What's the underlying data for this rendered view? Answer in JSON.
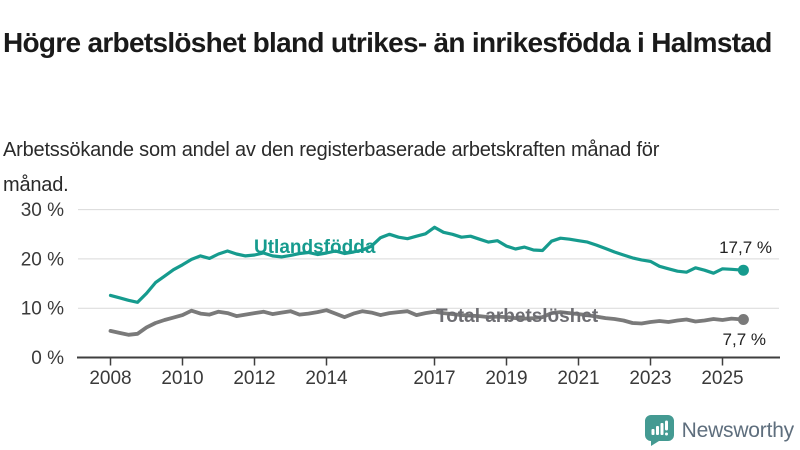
{
  "chart_data": {
    "type": "line",
    "title": "Högre arbetslöshet bland utrikes- än inrikesfödda i Halmstad",
    "subtitle": "Arbetssökande som andel av den registerbaserade arbetskraften månad för månad.",
    "unit": "%",
    "xlabel": "",
    "ylabel": "",
    "ylim": [
      0,
      32
    ],
    "xlim": [
      2007.1,
      2026.7
    ],
    "grid": "horizontal-only",
    "legend_position": "inline-labels-on-lines",
    "y_tick_values": [
      30,
      20,
      10,
      0
    ],
    "y_ticks": [
      "30 %",
      "20 %",
      "10 %",
      "0 %"
    ],
    "x_tick_years": [
      2008,
      2010,
      2012,
      2014,
      2017,
      2019,
      2021,
      2023,
      2025
    ],
    "series": [
      {
        "name": "Utlandsfödda",
        "color": "#169b8e",
        "label_color": "#169b8e",
        "end_label": "17,7 %",
        "end_value": 17.7,
        "points": [
          [
            2008.0,
            12.6
          ],
          [
            2008.25,
            12.1
          ],
          [
            2008.5,
            11.6
          ],
          [
            2008.75,
            11.2
          ],
          [
            2009.0,
            13.0
          ],
          [
            2009.25,
            15.2
          ],
          [
            2009.5,
            16.5
          ],
          [
            2009.75,
            17.8
          ],
          [
            2010.0,
            18.8
          ],
          [
            2010.25,
            19.9
          ],
          [
            2010.5,
            20.6
          ],
          [
            2010.75,
            20.1
          ],
          [
            2011.0,
            21.0
          ],
          [
            2011.25,
            21.6
          ],
          [
            2011.5,
            21.0
          ],
          [
            2011.75,
            20.6
          ],
          [
            2012.0,
            20.8
          ],
          [
            2012.25,
            21.2
          ],
          [
            2012.5,
            20.6
          ],
          [
            2012.75,
            20.4
          ],
          [
            2013.0,
            20.7
          ],
          [
            2013.25,
            21.1
          ],
          [
            2013.5,
            21.3
          ],
          [
            2013.75,
            20.9
          ],
          [
            2014.0,
            21.2
          ],
          [
            2014.25,
            21.6
          ],
          [
            2014.5,
            21.1
          ],
          [
            2014.75,
            21.4
          ],
          [
            2015.0,
            21.8
          ],
          [
            2015.25,
            22.6
          ],
          [
            2015.5,
            24.3
          ],
          [
            2015.75,
            25.0
          ],
          [
            2016.0,
            24.4
          ],
          [
            2016.25,
            24.1
          ],
          [
            2016.5,
            24.6
          ],
          [
            2016.75,
            25.1
          ],
          [
            2017.0,
            26.4
          ],
          [
            2017.25,
            25.4
          ],
          [
            2017.5,
            25.0
          ],
          [
            2017.75,
            24.4
          ],
          [
            2018.0,
            24.6
          ],
          [
            2018.25,
            24.0
          ],
          [
            2018.5,
            23.4
          ],
          [
            2018.75,
            23.7
          ],
          [
            2019.0,
            22.6
          ],
          [
            2019.25,
            22.0
          ],
          [
            2019.5,
            22.4
          ],
          [
            2019.75,
            21.8
          ],
          [
            2020.0,
            21.7
          ],
          [
            2020.25,
            23.6
          ],
          [
            2020.5,
            24.2
          ],
          [
            2020.75,
            24.0
          ],
          [
            2021.0,
            23.7
          ],
          [
            2021.25,
            23.4
          ],
          [
            2021.5,
            22.8
          ],
          [
            2021.75,
            22.1
          ],
          [
            2022.0,
            21.4
          ],
          [
            2022.25,
            20.8
          ],
          [
            2022.5,
            20.2
          ],
          [
            2022.75,
            19.8
          ],
          [
            2023.0,
            19.5
          ],
          [
            2023.25,
            18.5
          ],
          [
            2023.5,
            18.0
          ],
          [
            2023.75,
            17.5
          ],
          [
            2024.0,
            17.3
          ],
          [
            2024.25,
            18.2
          ],
          [
            2024.5,
            17.7
          ],
          [
            2024.75,
            17.1
          ],
          [
            2025.0,
            18.0
          ],
          [
            2025.25,
            17.9
          ],
          [
            2025.58,
            17.7
          ]
        ]
      },
      {
        "name": "Total arbetslöshet",
        "color": "#7a7a7a",
        "label_color": "#6d6d72",
        "end_label": "7,7 %",
        "end_value": 7.7,
        "points": [
          [
            2008.0,
            5.4
          ],
          [
            2008.25,
            5.0
          ],
          [
            2008.5,
            4.6
          ],
          [
            2008.75,
            4.8
          ],
          [
            2009.0,
            6.1
          ],
          [
            2009.25,
            7.0
          ],
          [
            2009.5,
            7.6
          ],
          [
            2009.75,
            8.1
          ],
          [
            2010.0,
            8.6
          ],
          [
            2010.25,
            9.5
          ],
          [
            2010.5,
            8.9
          ],
          [
            2010.75,
            8.7
          ],
          [
            2011.0,
            9.3
          ],
          [
            2011.25,
            9.0
          ],
          [
            2011.5,
            8.4
          ],
          [
            2011.75,
            8.7
          ],
          [
            2012.0,
            9.0
          ],
          [
            2012.25,
            9.3
          ],
          [
            2012.5,
            8.8
          ],
          [
            2012.75,
            9.1
          ],
          [
            2013.0,
            9.4
          ],
          [
            2013.25,
            8.7
          ],
          [
            2013.5,
            8.9
          ],
          [
            2013.75,
            9.2
          ],
          [
            2014.0,
            9.6
          ],
          [
            2014.25,
            8.9
          ],
          [
            2014.5,
            8.2
          ],
          [
            2014.75,
            8.9
          ],
          [
            2015.0,
            9.4
          ],
          [
            2015.25,
            9.1
          ],
          [
            2015.5,
            8.6
          ],
          [
            2015.75,
            9.0
          ],
          [
            2016.0,
            9.2
          ],
          [
            2016.25,
            9.4
          ],
          [
            2016.5,
            8.6
          ],
          [
            2016.75,
            9.0
          ],
          [
            2017.0,
            9.3
          ],
          [
            2017.25,
            9.0
          ],
          [
            2017.5,
            8.8
          ],
          [
            2017.75,
            8.6
          ],
          [
            2018.0,
            8.5
          ],
          [
            2018.25,
            8.4
          ],
          [
            2018.5,
            8.2
          ],
          [
            2018.75,
            8.3
          ],
          [
            2019.0,
            8.2
          ],
          [
            2019.25,
            8.0
          ],
          [
            2019.5,
            7.9
          ],
          [
            2019.75,
            8.0
          ],
          [
            2020.0,
            8.2
          ],
          [
            2020.25,
            9.0
          ],
          [
            2020.5,
            9.2
          ],
          [
            2020.75,
            9.0
          ],
          [
            2021.0,
            8.8
          ],
          [
            2021.25,
            8.6
          ],
          [
            2021.5,
            8.3
          ],
          [
            2021.75,
            8.0
          ],
          [
            2022.0,
            7.8
          ],
          [
            2022.25,
            7.5
          ],
          [
            2022.5,
            7.0
          ],
          [
            2022.75,
            6.9
          ],
          [
            2023.0,
            7.2
          ],
          [
            2023.25,
            7.4
          ],
          [
            2023.5,
            7.2
          ],
          [
            2023.75,
            7.5
          ],
          [
            2024.0,
            7.7
          ],
          [
            2024.25,
            7.3
          ],
          [
            2024.5,
            7.5
          ],
          [
            2024.75,
            7.8
          ],
          [
            2025.0,
            7.6
          ],
          [
            2025.25,
            7.9
          ],
          [
            2025.58,
            7.7
          ]
        ]
      }
    ]
  },
  "branding": {
    "logo_text": "Newsworthy",
    "logo_icon": "bar-chart-speech-bubble-icon",
    "logo_icon_color": "#449a92",
    "logo_text_color": "#5e6e7d"
  }
}
